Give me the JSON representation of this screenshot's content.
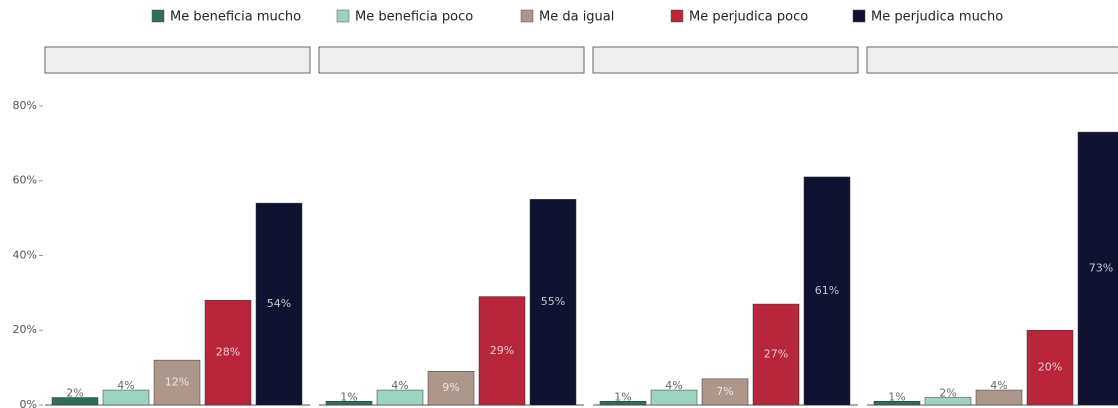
{
  "chart_data": {
    "type": "bar",
    "categories": [
      null,
      null,
      null,
      null
    ],
    "series": [
      {
        "name": "Me beneficia mucho",
        "color": "#2f6e58",
        "values": [
          2,
          1,
          1,
          1
        ],
        "value_labels": [
          "2%",
          "1%",
          "1%",
          "1%"
        ]
      },
      {
        "name": "Me beneficia poco",
        "color": "#9ed3c0",
        "values": [
          4,
          4,
          4,
          2
        ],
        "value_labels": [
          "4%",
          "4%",
          "4%",
          "2%"
        ]
      },
      {
        "name": "Me da igual",
        "color": "#ad978b",
        "values": [
          12,
          9,
          7,
          4
        ],
        "value_labels": [
          "12%",
          "9%",
          "7%",
          "4%"
        ]
      },
      {
        "name": "Me perjudica poco",
        "color": "#b8263b",
        "values": [
          28,
          29,
          27,
          20
        ],
        "value_labels": [
          "28%",
          "29%",
          "27%",
          "20%"
        ]
      },
      {
        "name": "Me perjudica mucho",
        "color": "#0f1230",
        "values": [
          54,
          55,
          61,
          73
        ],
        "value_labels": [
          "54%",
          "55%",
          "61%",
          "73%"
        ]
      }
    ],
    "ylim": [
      0,
      88
    ],
    "yticks": [
      {
        "value": 0,
        "label": "0%"
      },
      {
        "value": 20,
        "label": "20%"
      },
      {
        "value": 40,
        "label": "40%"
      },
      {
        "value": 60,
        "label": "60%"
      },
      {
        "value": 80,
        "label": "80%"
      }
    ],
    "legend": "top"
  }
}
